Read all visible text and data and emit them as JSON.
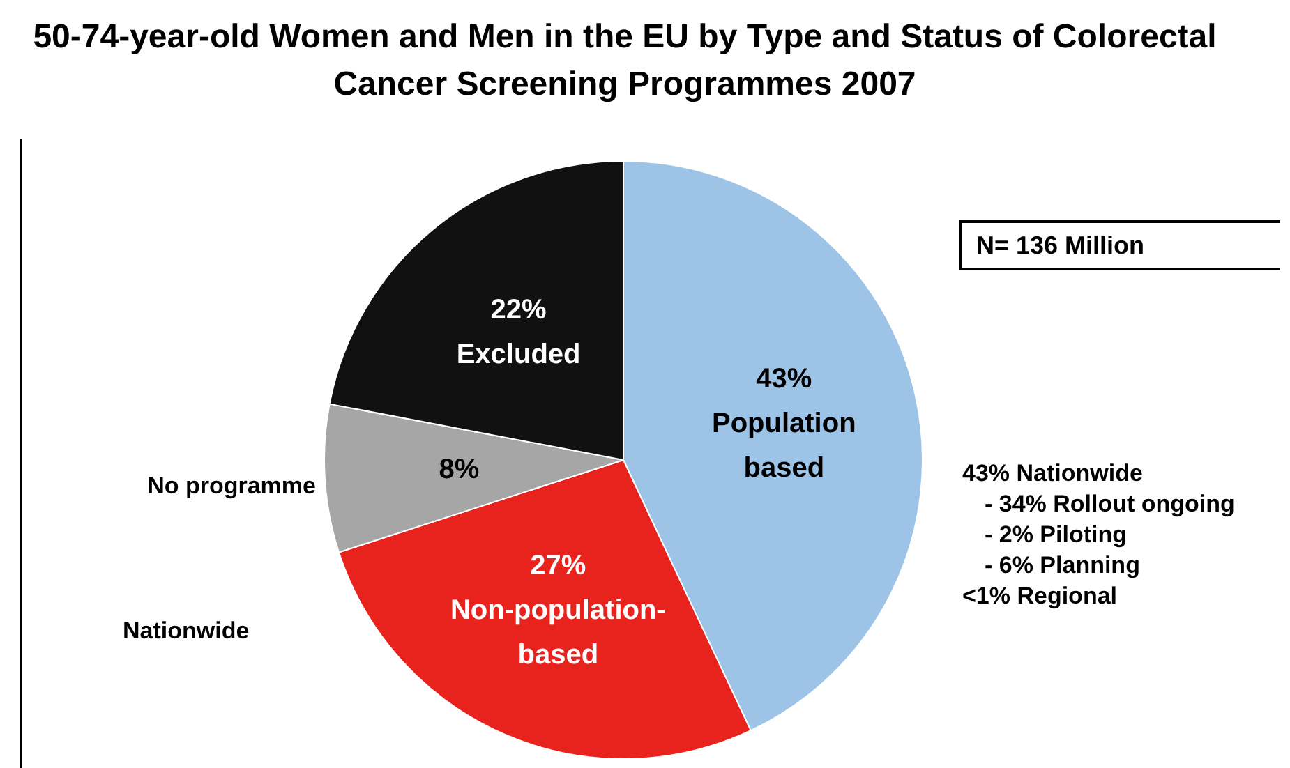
{
  "chart_data": {
    "type": "pie",
    "title": "50-74-year-old Women and Men in the EU by Type and Status of Colorectal Cancer Screening Programmes 2007",
    "categories": [
      "Population based",
      "Non-population-based",
      "No programme",
      "Excluded"
    ],
    "values": [
      43,
      27,
      8,
      22
    ],
    "value_labels": [
      "43%",
      "27%",
      "8%",
      "22%"
    ],
    "colors": [
      "#9dc3e6",
      "#e8231e",
      "#a6a6a6",
      "#111111"
    ],
    "legend": false,
    "annotations": [
      "N= 136 Million",
      "Nationwide",
      "43% Nationwide",
      "- 34% Rollout ongoing",
      "- 2% Piloting",
      "- 6% Planning",
      "<1% Regional"
    ]
  }
}
